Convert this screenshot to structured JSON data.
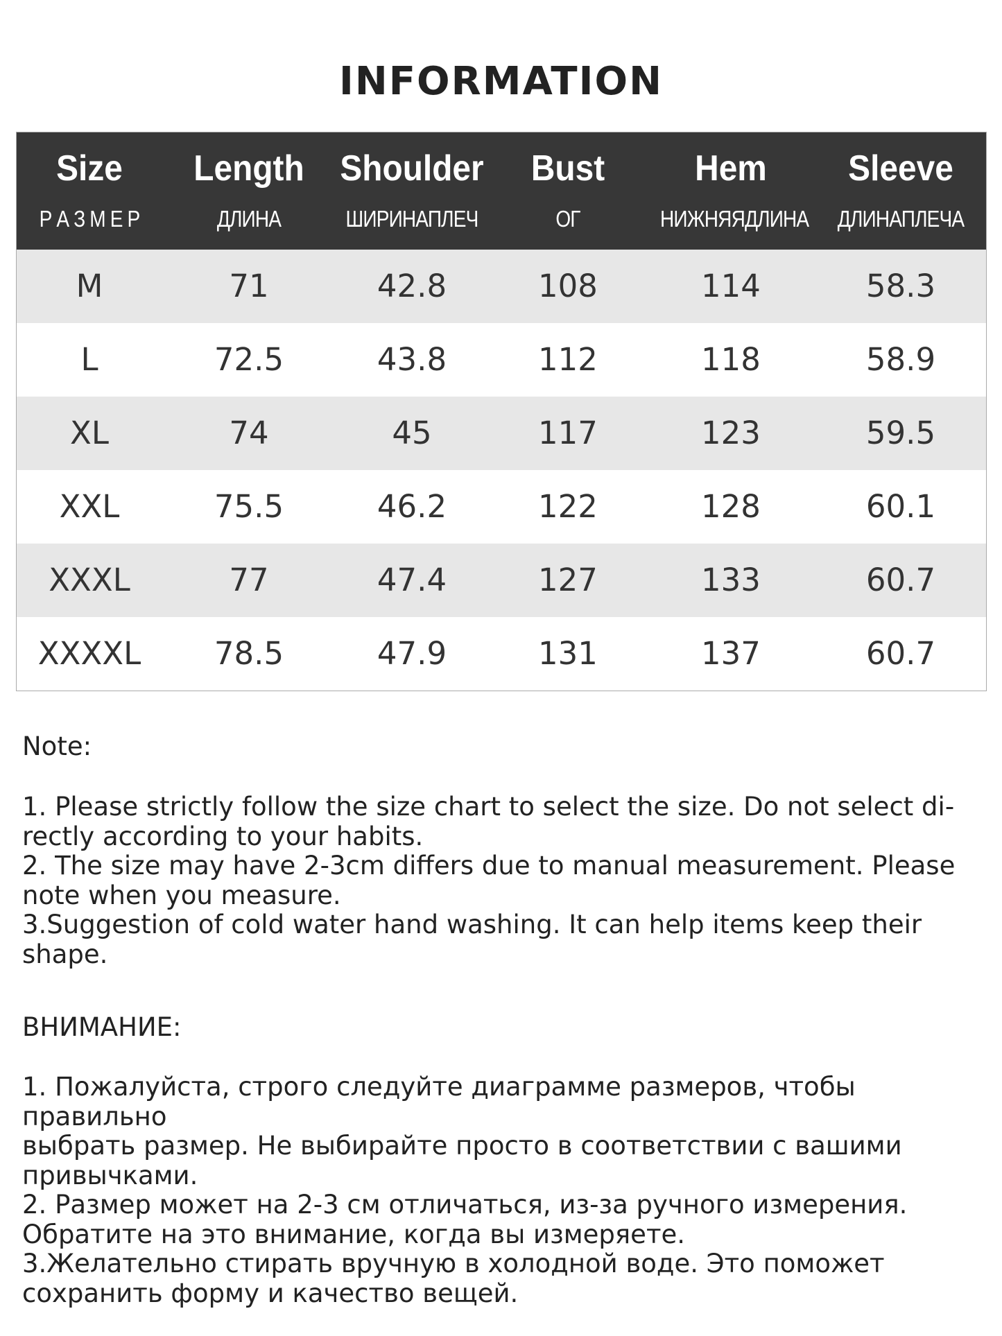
{
  "title": "INFORMATION",
  "table": {
    "headers": [
      {
        "en": "Size",
        "ru": "Р А З М Е Р"
      },
      {
        "en": "Length",
        "ru": "ДЛИНА"
      },
      {
        "en": "Shoulder",
        "ru": "ШИРИНАПЛЕЧ"
      },
      {
        "en": "Bust",
        "ru": "ОГ"
      },
      {
        "en": "Hem",
        "ru": "НИЖНЯЯДЛИНА"
      },
      {
        "en": "Sleeve",
        "ru": "ДЛИНАПЛЕЧА"
      }
    ],
    "rows": [
      [
        "M",
        "71",
        "42.8",
        "108",
        "114",
        "58.3"
      ],
      [
        "L",
        "72.5",
        "43.8",
        "112",
        "118",
        "58.9"
      ],
      [
        "XL",
        "74",
        "45",
        "117",
        "123",
        "59.5"
      ],
      [
        "XXL",
        "75.5",
        "46.2",
        "122",
        "128",
        "60.1"
      ],
      [
        "XXXL",
        "77",
        "47.4",
        "127",
        "133",
        "60.7"
      ],
      [
        "XXXXL",
        "78.5",
        "47.9",
        "131",
        "137",
        "60.7"
      ]
    ]
  },
  "note": {
    "heading": "Note:",
    "lines": [
      "1. Please strictly follow the size chart  to select the size. Do not select di-",
      "rectly according to your habits.",
      "2. The size may have 2-3cm differs due to manual measurement. Please",
      "note when you measure.",
      "3.Suggestion of cold water hand washing. It can help items keep their",
      "shape."
    ]
  },
  "ru_note": {
    "heading": "ВНИМАНИЕ:",
    "lines": [
      "1. Пожалуйста, строго следуйте диаграмме размеров, чтобы правильно",
      "выбрать размер. Не выбирайте просто в соответствии с вашими",
      "привычками.",
      "2. Размер может на 2-3 см отличаться, из-за ручного измерения.",
      "Обратите на это внимание, когда вы измеряете.",
      "3.Желательно стирать вручную в холодной воде. Это поможет",
      "сохранить форму и качество вещей."
    ]
  }
}
